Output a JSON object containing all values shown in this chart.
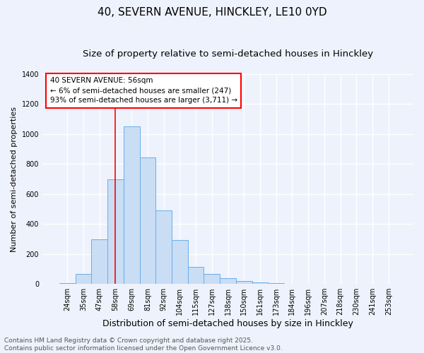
{
  "title_line1": "40, SEVERN AVENUE, HINCKLEY, LE10 0YD",
  "title_line2": "Size of property relative to semi-detached houses in Hinckley",
  "xlabel": "Distribution of semi-detached houses by size in Hinckley",
  "ylabel": "Number of semi-detached properties",
  "categories": [
    "24sqm",
    "35sqm",
    "47sqm",
    "58sqm",
    "69sqm",
    "81sqm",
    "92sqm",
    "104sqm",
    "115sqm",
    "127sqm",
    "138sqm",
    "150sqm",
    "161sqm",
    "173sqm",
    "184sqm",
    "196sqm",
    "207sqm",
    "218sqm",
    "230sqm",
    "241sqm",
    "253sqm"
  ],
  "values": [
    5,
    65,
    300,
    700,
    1050,
    845,
    490,
    295,
    115,
    65,
    40,
    18,
    10,
    5,
    2,
    1,
    0,
    0,
    0,
    0,
    0
  ],
  "bar_color": "#c9ddf5",
  "bar_edge_color": "#6aaee8",
  "red_line_x": 3.0,
  "annotation_text": "40 SEVERN AVENUE: 56sqm\n← 6% of semi-detached houses are smaller (247)\n93% of semi-detached houses are larger (3,711) →",
  "annotation_box_color": "white",
  "annotation_box_edge_color": "red",
  "ylim": [
    0,
    1400
  ],
  "yticks": [
    0,
    200,
    400,
    600,
    800,
    1000,
    1200,
    1400
  ],
  "background_color": "#eef2fc",
  "grid_color": "white",
  "footer_text": "Contains HM Land Registry data © Crown copyright and database right 2025.\nContains public sector information licensed under the Open Government Licence v3.0.",
  "title_fontsize": 11,
  "subtitle_fontsize": 9.5,
  "xlabel_fontsize": 9,
  "ylabel_fontsize": 8,
  "tick_fontsize": 7,
  "annotation_fontsize": 7.5,
  "footer_fontsize": 6.5
}
